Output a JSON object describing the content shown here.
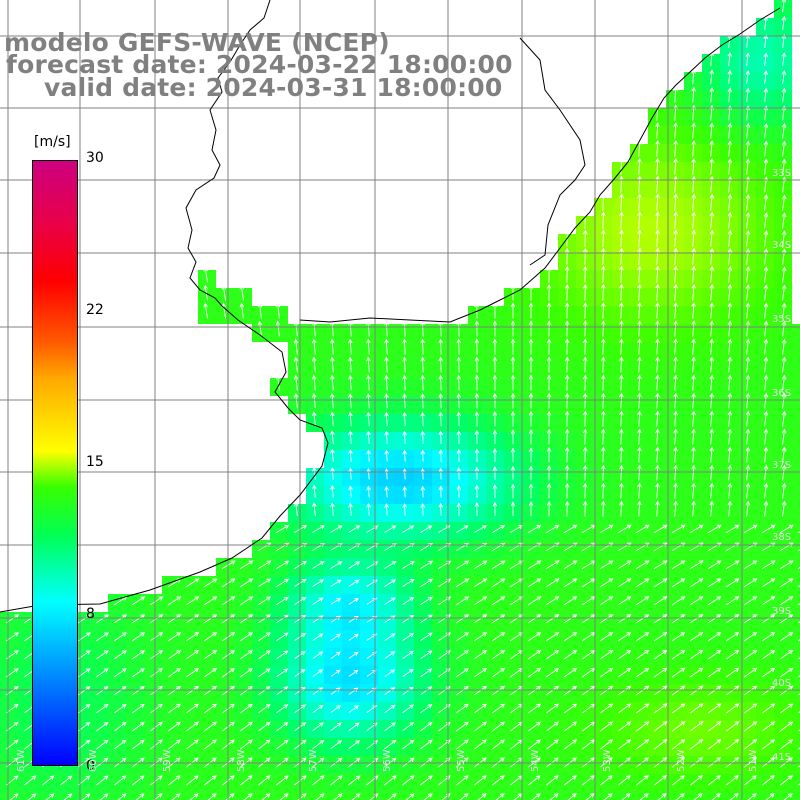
{
  "title": {
    "model": "modelo GEFS-WAVE (NCEP)",
    "forecast": "forecast date: 2024-03-22 18:00:00",
    "valid": "valid date: 2024-03-31 18:00:00"
  },
  "colorbar": {
    "unit": "[m/s]",
    "ticks": [
      "30",
      "22",
      "15",
      "8",
      "0"
    ],
    "colors": [
      "#0000ff",
      "#0070ff",
      "#00ffff",
      "#00ff55",
      "#38ff00",
      "#ffff00",
      "#ffa800",
      "#ff5a00",
      "#ff0000",
      "#cc0080"
    ]
  },
  "map": {
    "variable": "wind speed with wind direction arrows",
    "land_color": "#ffffff",
    "grid_color": "#808080",
    "arrow_color": "#ffffff",
    "lon_labels": [
      "61W",
      "60W",
      "59W",
      "58W",
      "57W",
      "56W",
      "55W",
      "54W",
      "53W",
      "52W",
      "51W"
    ],
    "lat_labels": [
      "33S",
      "34S",
      "35S",
      "36S",
      "37S",
      "38S",
      "39S",
      "40S",
      "41S"
    ]
  }
}
